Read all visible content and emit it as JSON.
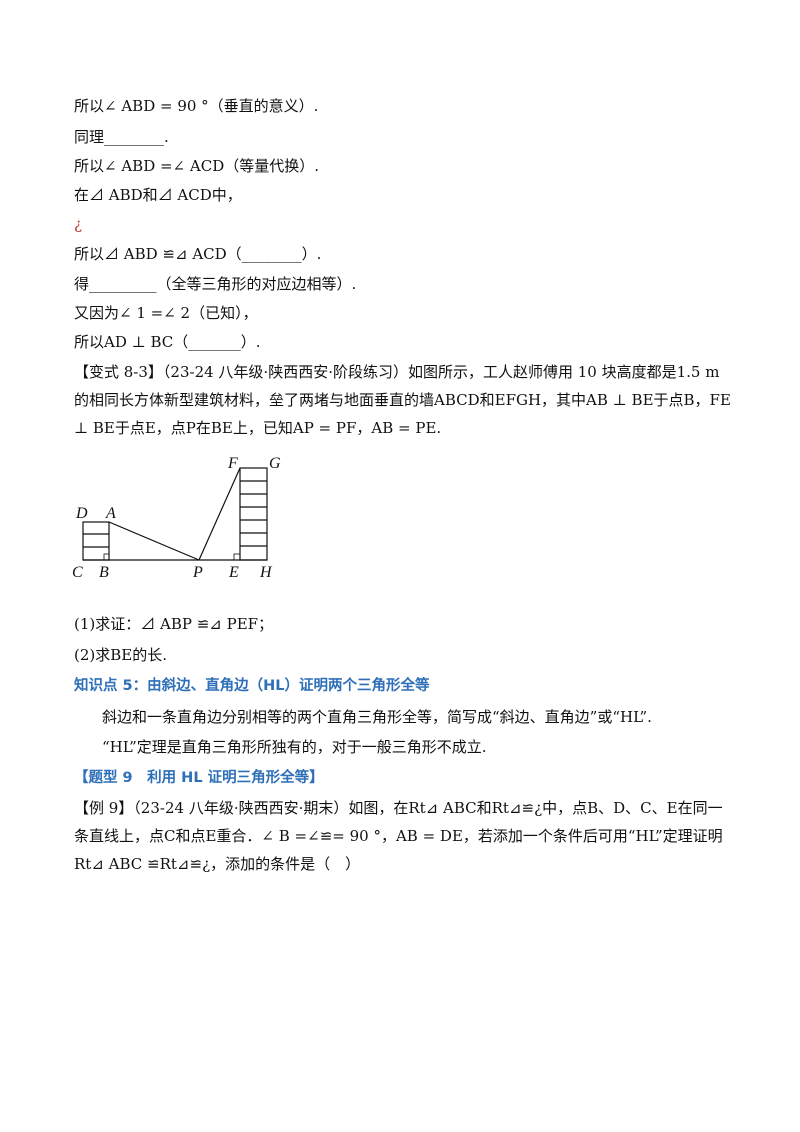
{
  "lines": {
    "l1": "所以∠ ABD = 90 °（垂直的意义）.",
    "l2": "同理________.",
    "l3": "所以∠ ABD =∠ ACD（等量代换）.",
    "l4": "在⊿ ABD和⊿ ACD中，",
    "l5": "¿",
    "l6": "所以⊿ ABD ≌⊿ ACD（________）.",
    "l7": "得_________（全等三角形的对应边相等）.",
    "l8": "又因为∠ 1 =∠ 2（已知），",
    "l9": "所以AD ⊥ BC（_______）."
  },
  "variant": {
    "text": "【变式 8-3】（23-24 八年级·陕西西安·阶段练习）如图所示，工人赵师傅用 10 块高度都是1.5 m的相同长方体新型建筑材料，垒了两堵与地面垂直的墙ABCD和EFGH，其中AB ⊥ BE于点B，FE ⊥ BE于点E，点P在BE上，已知AP = PF，AB = PE."
  },
  "figure": {
    "labels": {
      "D": "D",
      "A": "A",
      "C": "C",
      "B": "B",
      "P": "P",
      "E": "E",
      "H": "H",
      "F": "F",
      "G": "G"
    }
  },
  "questions": {
    "q1": "(1)求证：⊿ ABP ≌⊿ PEF；",
    "q2": "(2)求BE的长."
  },
  "knowledge": {
    "title": "知识点 5：由斜边、直角边（HL）证明两个三角形全等",
    "p1": "斜边和一条直角边分别相等的两个直角三角形全等，简写成“斜边、直角边”或“HL”.",
    "p2": "“HL”定理是直角三角形所独有的，对于一般三角形不成立."
  },
  "type9": {
    "title": "【题型 9　利用 HL 证明三角形全等】"
  },
  "example9": {
    "text": "【例 9】（23-24 八年级·陕西西安·期末）如图，在Rt⊿ ABC和Rt⊿≌¿中，点B、D、C、E在同一条直线上，点C和点E重合．∠ B =∠≌= 90 °，AB = DE，若添加一个条件后可用“HL”定理证明Rt⊿ ABC ≌Rt⊿≌¿，添加的条件是（　）"
  }
}
